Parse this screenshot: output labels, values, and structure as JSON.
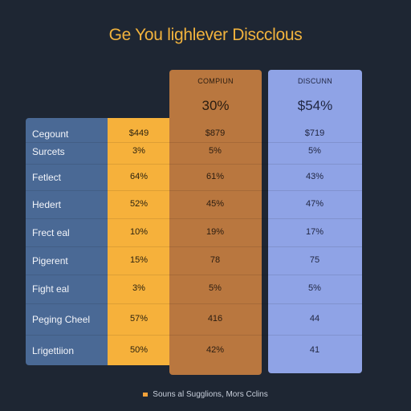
{
  "title": "Ge You lighlever Discclous",
  "columns": {
    "comp": {
      "header": "COMPIUN",
      "price": "30%"
    },
    "disc": {
      "header": "DISCUNN",
      "price": "$54%"
    }
  },
  "rows": [
    {
      "label": "Cegount",
      "yellow": "$449",
      "comp": "$879",
      "disc": "$719"
    },
    {
      "label": "Surcets",
      "yellow": "3%",
      "comp": "5%",
      "disc": "5%"
    },
    {
      "label": "Fetlect",
      "yellow": "64%",
      "comp": "61%",
      "disc": "43%"
    },
    {
      "label": "Hedert",
      "yellow": "52%",
      "comp": "45%",
      "disc": "47%"
    },
    {
      "label": "Frect eal",
      "yellow": "10%",
      "comp": "19%",
      "disc": "17%"
    },
    {
      "label": "Pigerent",
      "yellow": "15%",
      "comp": "78",
      "disc": "75"
    },
    {
      "label": "Fight eal",
      "yellow": "3%",
      "comp": "5%",
      "disc": "5%"
    },
    {
      "label": "Peging Cheel",
      "yellow": "57%",
      "comp": "416",
      "disc": "44"
    },
    {
      "label": "Lrigettiion",
      "yellow": "50%",
      "comp": "42%",
      "disc": "41"
    }
  ],
  "footer": "Souns al Sugglions, Mors Cclins",
  "colors": {
    "background": "#1e2633",
    "title": "#f2b33d",
    "label_panel": "#4a6995",
    "yellow_panel": "#f6b13b",
    "comp_panel": "#b9773f",
    "disc_panel": "#8fa3e6"
  }
}
